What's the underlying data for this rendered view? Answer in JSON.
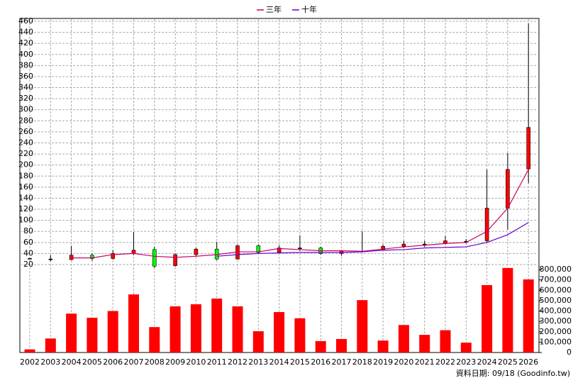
{
  "chart_data": {
    "type": "candlestick",
    "categories": [
      "2002",
      "2003",
      "2004",
      "2005",
      "2006",
      "2007",
      "2008",
      "2009",
      "2010",
      "2011",
      "2012",
      "2013",
      "2014",
      "2015",
      "2016",
      "2017",
      "2018",
      "2019",
      "2020",
      "2021",
      "2022",
      "2023",
      "2024",
      "2025",
      "2026"
    ],
    "open": [
      31,
      30,
      29,
      37,
      31,
      40,
      47,
      18,
      38,
      48,
      30,
      54,
      42,
      50,
      50,
      40,
      44,
      47,
      53,
      57,
      58,
      62,
      63,
      122,
      193
    ],
    "high": [
      32,
      37,
      54,
      40,
      46,
      79,
      52,
      40,
      50,
      61,
      56,
      56,
      55,
      73,
      52,
      46,
      80,
      56,
      63,
      63,
      72,
      66,
      192,
      222,
      456
    ],
    "low": [
      30,
      26,
      28,
      27,
      29,
      37,
      14,
      16,
      35,
      28,
      29,
      40,
      40,
      45,
      38,
      36,
      42,
      45,
      50,
      52,
      56,
      58,
      60,
      83,
      167
    ],
    "close": [
      31,
      30,
      37,
      31,
      40,
      46,
      17,
      38,
      48,
      30,
      54,
      42,
      50,
      50,
      40,
      45,
      44,
      53,
      57,
      57,
      63,
      62,
      122,
      192,
      268
    ],
    "up_color": "#ff0000",
    "down_color": "#00ff00",
    "series": [
      {
        "name": "三年",
        "color": "#cc0066",
        "values": [
          null,
          null,
          32,
          32,
          38,
          40,
          35,
          33,
          35,
          38,
          43,
          43,
          49,
          47,
          45,
          45,
          44,
          48,
          52,
          55,
          58,
          60,
          80,
          122,
          192
        ]
      },
      {
        "name": "十年",
        "color": "#6600cc",
        "values": [
          null,
          null,
          null,
          null,
          null,
          null,
          null,
          null,
          null,
          35,
          38,
          40,
          41,
          42,
          42,
          42,
          43,
          46,
          47,
          50,
          51,
          52,
          60,
          74,
          96
        ]
      }
    ],
    "ylim": [
      20,
      460
    ],
    "yticks": [
      20,
      40,
      60,
      80,
      100,
      120,
      140,
      160,
      180,
      200,
      220,
      240,
      260,
      280,
      300,
      320,
      340,
      360,
      380,
      400,
      420,
      440,
      460
    ],
    "grid": true,
    "legend": "top",
    "volume": {
      "type": "bar",
      "color": "#ff0000",
      "values": [
        30000,
        135000,
        375000,
        335000,
        400000,
        560000,
        245000,
        445000,
        465000,
        520000,
        445000,
        205000,
        390000,
        330000,
        110000,
        130000,
        505000,
        115000,
        265000,
        170000,
        215000,
        95000,
        650000,
        815000,
        705000
      ],
      "ylim": [
        0,
        800000
      ],
      "yticks": [
        0,
        {
          "value": 100000,
          "label": "100,000"
        },
        {
          "value": 200000,
          "label": "200,000"
        },
        {
          "value": 300000,
          "label": "300,000"
        },
        {
          "value": 400000,
          "label": "400,000"
        },
        {
          "value": 500000,
          "label": "500,000"
        },
        {
          "value": 600000,
          "label": "600,000"
        },
        {
          "value": 700000,
          "label": "700,000"
        },
        {
          "value": 800000,
          "label": "800,000"
        }
      ]
    },
    "footer": "資料日期: 09/18 (Goodinfo.tw)"
  }
}
